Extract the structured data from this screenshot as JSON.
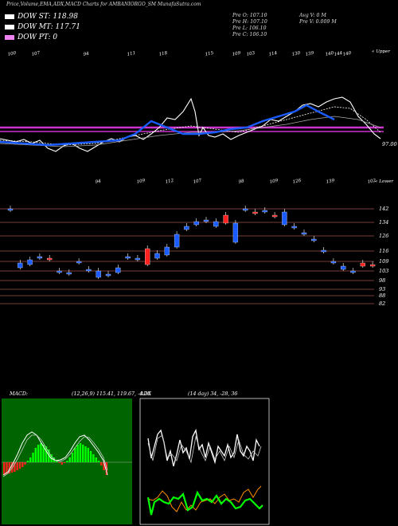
{
  "header": {
    "title": "Price,Volume,EMA,ADX,MACD Charts for AMBANIORGO_SM MunafaSutra.com"
  },
  "legend": [
    {
      "label": "DOW ST: 118.98",
      "color": "#ffffff"
    },
    {
      "label": "DOW MT: 117.71",
      "color": "#ffffff"
    },
    {
      "label": "DOW PT: 0",
      "color": "#ee82ee"
    }
  ],
  "ohlc": {
    "open": "Pre O: 107.10",
    "high": "Pre H: 107.10",
    "low": "Pre L: 106.10",
    "close": "Pre C: 106.10",
    "avg_volume": "Avg V: 0 M",
    "volume": "Pre V: 0.009 M"
  },
  "ema_panel": {
    "top_numbers": [
      "100",
      "107",
      "94",
      "111",
      "118",
      "115",
      "109",
      "103",
      "114",
      "130",
      "139",
      "140",
      "144",
      "140"
    ],
    "bottom_numbers": [
      "94",
      "109",
      "112",
      "107",
      "98",
      "109",
      "126",
      "139",
      "102"
    ],
    "upper_label": "« Upper",
    "lower_label": "« Lower",
    "price_label": "97.00",
    "colors": {
      "ma_line": "#cc33cc",
      "ema_blue": "#1a5cff"
    }
  },
  "chart_data": {
    "type": "candlestick",
    "y_ticks": [
      "142",
      "134",
      "126",
      "116",
      "109",
      "103",
      "98",
      "93",
      "88",
      "82"
    ],
    "candles": [
      {
        "o": 142,
        "c": 142,
        "color": "blue"
      },
      {
        "o": 108,
        "c": 105,
        "color": "blue"
      },
      {
        "o": 110,
        "c": 107,
        "color": "blue"
      },
      {
        "o": 112,
        "c": 112,
        "color": "blue"
      },
      {
        "o": 111,
        "c": 111,
        "color": "red"
      },
      {
        "o": 103,
        "c": 103,
        "color": "blue"
      },
      {
        "o": 102,
        "c": 102,
        "color": "blue"
      },
      {
        "o": 109,
        "c": 109,
        "color": "blue"
      },
      {
        "o": 104,
        "c": 104,
        "color": "blue"
      },
      {
        "o": 103,
        "c": 99,
        "color": "blue"
      },
      {
        "o": 101,
        "c": 101,
        "color": "blue"
      },
      {
        "o": 105,
        "c": 102,
        "color": "blue"
      },
      {
        "o": 112,
        "c": 112,
        "color": "blue"
      },
      {
        "o": 111,
        "c": 111,
        "color": "blue"
      },
      {
        "o": 117,
        "c": 107,
        "color": "red"
      },
      {
        "o": 114,
        "c": 111,
        "color": "blue"
      },
      {
        "o": 118,
        "c": 113,
        "color": "blue"
      },
      {
        "o": 126,
        "c": 118,
        "color": "blue"
      },
      {
        "o": 131,
        "c": 129,
        "color": "blue"
      },
      {
        "o": 134,
        "c": 132,
        "color": "blue"
      },
      {
        "o": 135,
        "c": 135,
        "color": "blue"
      },
      {
        "o": 134,
        "c": 131,
        "color": "blue"
      },
      {
        "o": 133,
        "c": 138,
        "color": "red"
      },
      {
        "o": 133,
        "c": 121,
        "color": "blue"
      },
      {
        "o": 142,
        "c": 142,
        "color": "blue"
      },
      {
        "o": 140,
        "c": 140,
        "color": "red"
      },
      {
        "o": 141,
        "c": 141,
        "color": "blue"
      },
      {
        "o": 138,
        "c": 138,
        "color": "red"
      },
      {
        "o": 140,
        "c": 132,
        "color": "blue"
      },
      {
        "o": 131,
        "c": 131,
        "color": "blue"
      },
      {
        "o": 127,
        "c": 127,
        "color": "blue"
      },
      {
        "o": 123,
        "c": 123,
        "color": "blue"
      },
      {
        "o": 116,
        "c": 116,
        "color": "blue"
      },
      {
        "o": 109,
        "c": 109,
        "color": "blue"
      },
      {
        "o": 106,
        "c": 104,
        "color": "blue"
      },
      {
        "o": 103,
        "c": 103,
        "color": "blue"
      },
      {
        "o": 108,
        "c": 106,
        "color": "red"
      },
      {
        "o": 107,
        "c": 107,
        "color": "red"
      }
    ],
    "macd": {
      "label": "MACD:",
      "params": "(12,26,9) 115.41, 119.67, -4.26",
      "zero_line": 0
    },
    "adx": {
      "label": "ADX",
      "params": "(14 day) 34, -28, 36"
    }
  }
}
